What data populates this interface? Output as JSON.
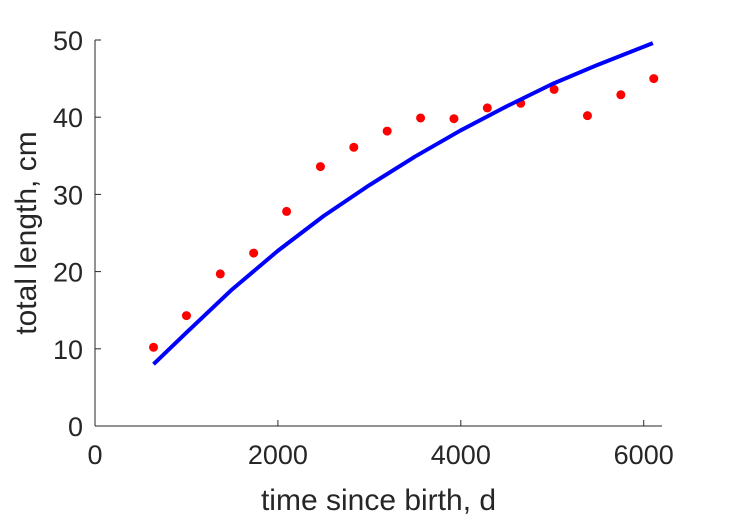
{
  "chart_data": {
    "type": "scatter",
    "title": "",
    "xlabel": "time since birth, d",
    "ylabel": "total length, cm",
    "xlim": [
      0,
      6200
    ],
    "ylim": [
      0,
      50
    ],
    "xticks": [
      0,
      2000,
      4000,
      6000
    ],
    "xtick_labels": [
      "0",
      "2000",
      "4000",
      "6000"
    ],
    "yticks": [
      0,
      10,
      20,
      30,
      40,
      50
    ],
    "ytick_labels": [
      "0",
      "10",
      "20",
      "30",
      "40",
      "50"
    ],
    "grid": false,
    "series": [
      {
        "kind": "scatter",
        "color": "#ff0000",
        "x": [
          640,
          1000,
          1370,
          1735,
          2095,
          2465,
          2830,
          3195,
          3560,
          3925,
          4290,
          4655,
          5020,
          5385,
          5750,
          6110
        ],
        "y": [
          10.2,
          14.3,
          19.7,
          22.4,
          27.8,
          33.6,
          36.1,
          38.2,
          39.9,
          39.8,
          41.2,
          41.8,
          43.6,
          40.2,
          42.9,
          45.0
        ]
      },
      {
        "kind": "line",
        "color": "#0000ff",
        "x": [
          640,
          1000,
          1500,
          2000,
          2500,
          3000,
          3500,
          4000,
          4500,
          5000,
          5500,
          6100
        ],
        "y": [
          8.0,
          12.1,
          17.7,
          22.7,
          27.2,
          31.2,
          34.9,
          38.3,
          41.4,
          44.3,
          46.8,
          49.6
        ]
      }
    ]
  }
}
